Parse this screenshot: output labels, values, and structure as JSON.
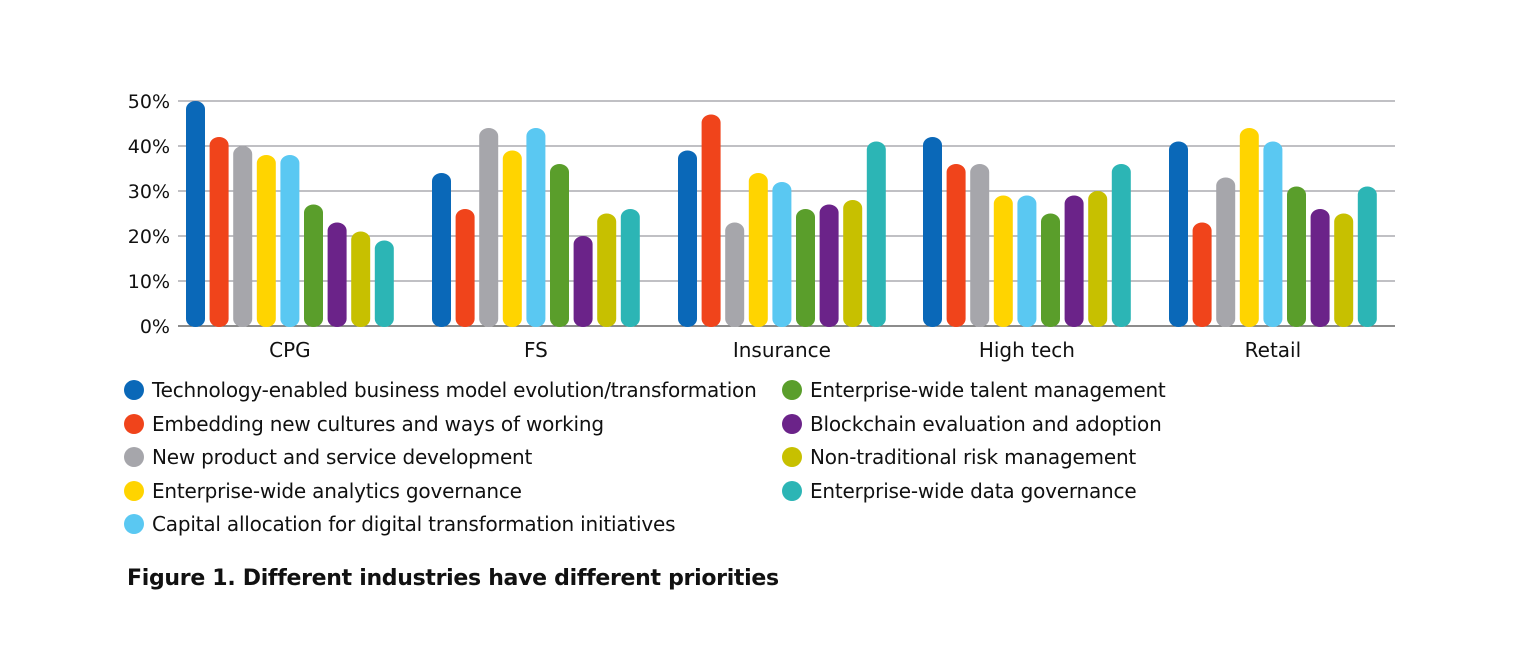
{
  "caption": "Figure 1. Different industries have different priorities",
  "chart_data": {
    "type": "bar",
    "categories": [
      "CPG",
      "FS",
      "Insurance",
      "High tech",
      "Retail"
    ],
    "y_ticks": [
      "0%",
      "10%",
      "20%",
      "30%",
      "40%",
      "50%"
    ],
    "ylim": [
      0,
      50
    ],
    "grid": true,
    "legend_placement": "bottom",
    "series": [
      {
        "name": "Technology-enabled business model evolution/transformation",
        "color": "#0a68b8",
        "values": [
          50,
          34,
          39,
          42,
          41
        ]
      },
      {
        "name": "Embedding new cultures and ways of working",
        "color": "#f0441b",
        "values": [
          42,
          26,
          47,
          36,
          23
        ]
      },
      {
        "name": "New product and service development",
        "color": "#a6a6ab",
        "values": [
          40,
          44,
          23,
          36,
          33
        ]
      },
      {
        "name": "Enterprise-wide analytics governance",
        "color": "#ffd400",
        "values": [
          38,
          39,
          34,
          29,
          44
        ]
      },
      {
        "name": "Capital allocation for digital transformation initiatives",
        "color": "#5ac8f2",
        "values": [
          38,
          44,
          32,
          29,
          41
        ]
      },
      {
        "name": "Enterprise-wide talent management",
        "color": "#5a9e2b",
        "values": [
          27,
          36,
          26,
          25,
          31
        ]
      },
      {
        "name": "Blockchain evaluation and adoption",
        "color": "#6b2389",
        "values": [
          23,
          20,
          27,
          29,
          26
        ]
      },
      {
        "name": "Non-traditional risk management",
        "color": "#c7c000",
        "values": [
          21,
          25,
          28,
          30,
          25
        ]
      },
      {
        "name": "Enterprise-wide data governance",
        "color": "#2cb5b5",
        "values": [
          19,
          26,
          41,
          36,
          31
        ]
      }
    ]
  }
}
